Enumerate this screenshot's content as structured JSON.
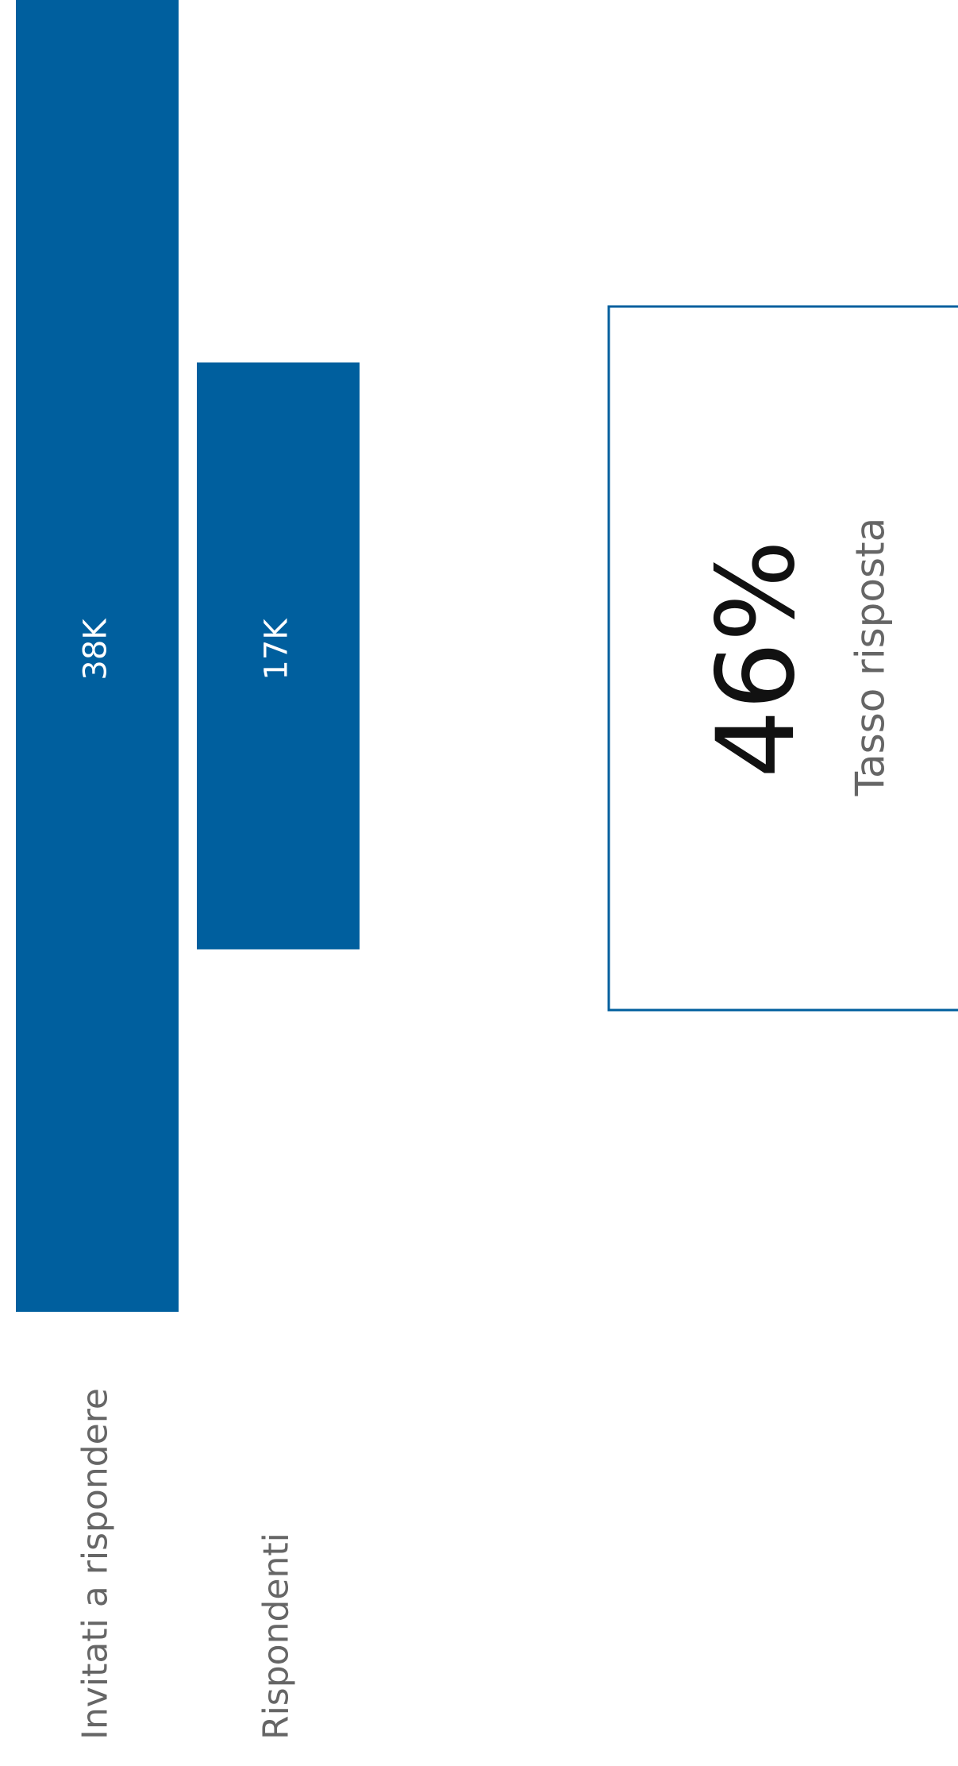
{
  "chart_data": {
    "type": "funnel",
    "categories": [
      "Invitati a rispondere",
      "Rispondenti"
    ],
    "values": [
      38000,
      17000
    ],
    "value_labels": [
      "38K",
      "17K"
    ],
    "color": "#005f9e"
  },
  "kpi": {
    "value": 46,
    "value_label": "46%",
    "label": "Tasso risposta"
  }
}
